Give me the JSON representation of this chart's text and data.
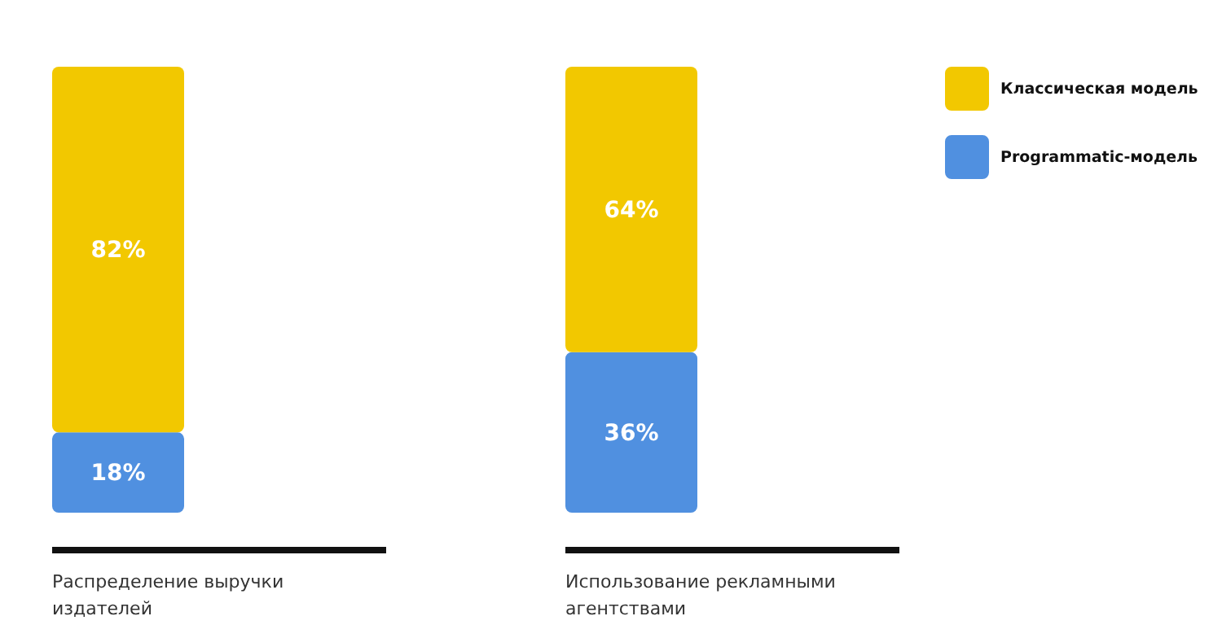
{
  "chart_data": {
    "type": "bar",
    "stacked": true,
    "categories": [
      "Распределение выручки издателей",
      "Использование рекламными агентствами"
    ],
    "series": [
      {
        "name": "Programmatic-модель",
        "color": "#5090e0",
        "values": [
          18,
          36
        ],
        "value_labels": [
          "18%",
          "36%"
        ]
      },
      {
        "name": "Классическая модель",
        "color": "#f2c800",
        "values": [
          82,
          64
        ],
        "value_labels": [
          "82%",
          "64%"
        ]
      }
    ],
    "legend": "top right",
    "tick_labels": "x"
  }
}
